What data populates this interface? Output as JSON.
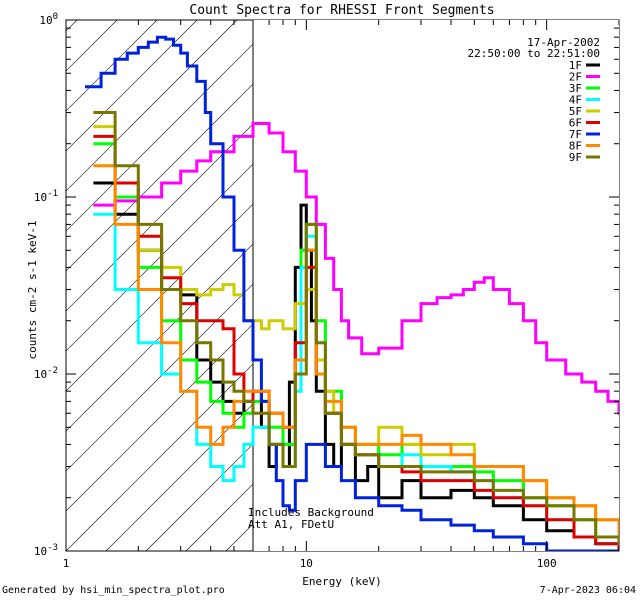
{
  "chart_data": {
    "type": "line",
    "title": "Count Spectra for RHESSI Front Segments",
    "xlabel": "Energy (keV)",
    "ylabel": "counts cm-2 s-1 keV-1",
    "xscale": "log",
    "yscale": "log",
    "xlim": [
      1,
      200
    ],
    "ylim": [
      0.001,
      1
    ],
    "x_tick_labels": [
      "1",
      "10",
      "100"
    ],
    "y_tick_labels": [
      "10^0",
      "10^-1",
      "10^-2",
      "10^-3"
    ],
    "date": "17-Apr-2002",
    "time_range": "22:50:00 to 22:51:00",
    "attenuator_cutoff_keV": 6,
    "annotations": [
      "Includes Background",
      "Att A1, FDetU"
    ],
    "series": [
      {
        "name": "1F",
        "color": "#000000",
        "x": [
          1.3,
          1.6,
          2,
          2.5,
          3,
          3.5,
          4,
          4.5,
          5,
          5.5,
          6,
          6.5,
          7,
          7.5,
          8,
          8.5,
          9,
          9.5,
          10,
          10.5,
          11,
          12,
          13,
          14,
          16,
          18,
          20,
          25,
          30,
          40,
          50,
          60,
          80,
          100,
          130,
          160,
          200
        ],
        "y": [
          0.12,
          0.08,
          0.05,
          0.03,
          0.028,
          0.012,
          0.009,
          0.007,
          0.006,
          0.007,
          0.008,
          0.005,
          0.003,
          0.004,
          0.003,
          0.009,
          0.04,
          0.09,
          0.05,
          0.02,
          0.008,
          0.004,
          0.003,
          0.004,
          0.0025,
          0.003,
          0.002,
          0.0025,
          0.002,
          0.0022,
          0.002,
          0.0018,
          0.0015,
          0.0013,
          0.0012,
          0.0011,
          0.001
        ]
      },
      {
        "name": "2F",
        "color": "#ff00ff",
        "x": [
          1.3,
          1.6,
          2,
          2.5,
          3,
          3.5,
          4,
          5,
          6,
          7,
          8,
          9,
          10,
          11,
          12,
          13,
          14,
          15,
          17,
          20,
          25,
          30,
          35,
          40,
          45,
          50,
          55,
          60,
          70,
          80,
          90,
          100,
          120,
          140,
          160,
          180,
          200
        ],
        "y": [
          0.09,
          0.095,
          0.1,
          0.12,
          0.14,
          0.16,
          0.18,
          0.22,
          0.26,
          0.23,
          0.18,
          0.14,
          0.1,
          0.07,
          0.045,
          0.03,
          0.02,
          0.016,
          0.013,
          0.014,
          0.02,
          0.025,
          0.027,
          0.028,
          0.03,
          0.033,
          0.035,
          0.03,
          0.025,
          0.02,
          0.015,
          0.012,
          0.01,
          0.009,
          0.008,
          0.007,
          0.006
        ]
      },
      {
        "name": "3F",
        "color": "#00ff00",
        "x": [
          1.3,
          1.6,
          2,
          2.5,
          3,
          3.5,
          4,
          4.5,
          5,
          5.5,
          6,
          7,
          8,
          9,
          9.5,
          10,
          11,
          12,
          14,
          16,
          20,
          25,
          30,
          40,
          50,
          60,
          80,
          100,
          130,
          160,
          200
        ],
        "y": [
          0.2,
          0.1,
          0.04,
          0.02,
          0.012,
          0.009,
          0.007,
          0.006,
          0.005,
          0.006,
          0.007,
          0.005,
          0.004,
          0.01,
          0.05,
          0.07,
          0.02,
          0.008,
          0.005,
          0.004,
          0.0035,
          0.004,
          0.003,
          0.003,
          0.0028,
          0.0025,
          0.002,
          0.0018,
          0.0015,
          0.0012,
          0.001
        ]
      },
      {
        "name": "4F",
        "color": "#00ffff",
        "x": [
          1.3,
          1.6,
          2,
          2.5,
          3,
          3.5,
          4,
          4.5,
          5,
          5.5,
          6,
          7,
          8,
          9,
          9.5,
          10,
          11,
          12,
          14,
          16,
          20,
          25,
          30,
          40,
          50,
          60,
          80,
          100,
          130,
          160,
          200
        ],
        "y": [
          0.08,
          0.03,
          0.015,
          0.01,
          0.008,
          0.004,
          0.003,
          0.0025,
          0.003,
          0.004,
          0.005,
          0.004,
          0.003,
          0.008,
          0.04,
          0.06,
          0.015,
          0.006,
          0.004,
          0.0035,
          0.003,
          0.0035,
          0.003,
          0.0028,
          0.0025,
          0.002,
          0.0018,
          0.0015,
          0.0012,
          0.0011,
          0.001
        ]
      },
      {
        "name": "5F",
        "color": "#cccc00",
        "x": [
          1.3,
          1.6,
          2,
          2.5,
          3,
          3.5,
          4,
          4.5,
          5,
          5.5,
          6,
          6.5,
          7,
          8,
          9,
          10,
          11,
          12,
          13,
          14,
          16,
          20,
          25,
          30,
          40,
          50,
          60,
          80,
          100,
          130,
          160,
          200
        ],
        "y": [
          0.25,
          0.12,
          0.05,
          0.04,
          0.03,
          0.028,
          0.03,
          0.032,
          0.028,
          0.02,
          0.02,
          0.018,
          0.02,
          0.018,
          0.025,
          0.03,
          0.012,
          0.008,
          0.006,
          0.005,
          0.004,
          0.005,
          0.004,
          0.0035,
          0.004,
          0.003,
          0.003,
          0.0025,
          0.002,
          0.0018,
          0.0015,
          0.0012
        ]
      },
      {
        "name": "6F",
        "color": "#dd0000",
        "x": [
          1.3,
          1.6,
          2,
          2.5,
          3,
          3.5,
          4,
          4.5,
          5,
          5.5,
          6,
          7,
          8,
          9,
          10,
          11,
          12,
          14,
          16,
          20,
          25,
          30,
          40,
          50,
          60,
          80,
          100,
          130,
          160,
          200
        ],
        "y": [
          0.22,
          0.12,
          0.06,
          0.035,
          0.025,
          0.02,
          0.02,
          0.018,
          0.01,
          0.007,
          0.008,
          0.006,
          0.005,
          0.015,
          0.04,
          0.01,
          0.006,
          0.004,
          0.0035,
          0.003,
          0.0028,
          0.0025,
          0.0025,
          0.0022,
          0.002,
          0.0018,
          0.0015,
          0.0012,
          0.0011,
          0.001
        ]
      },
      {
        "name": "7F",
        "color": "#0022dd",
        "x": [
          1.2,
          1.4,
          1.6,
          1.8,
          2,
          2.2,
          2.4,
          2.6,
          2.8,
          3,
          3.2,
          3.5,
          3.8,
          4,
          4.5,
          5,
          5.5,
          6,
          6.5,
          7,
          7.5,
          8,
          8.5,
          9,
          10,
          11,
          12,
          14,
          16,
          20,
          25,
          30,
          40,
          50,
          60,
          80,
          100,
          130,
          160,
          200
        ],
        "y": [
          0.42,
          0.5,
          0.6,
          0.65,
          0.7,
          0.75,
          0.8,
          0.78,
          0.72,
          0.65,
          0.55,
          0.45,
          0.3,
          0.2,
          0.1,
          0.05,
          0.02,
          0.012,
          0.007,
          0.004,
          0.0025,
          0.0018,
          0.0017,
          0.0025,
          0.004,
          0.004,
          0.003,
          0.0025,
          0.002,
          0.0018,
          0.0017,
          0.0015,
          0.0014,
          0.0013,
          0.0012,
          0.0011,
          0.001,
          0.001,
          0.001,
          0.001
        ]
      },
      {
        "name": "8F",
        "color": "#ff8800",
        "x": [
          1.3,
          1.6,
          2,
          2.5,
          3,
          3.5,
          4,
          4.5,
          5,
          5.5,
          6,
          7,
          8,
          9,
          10,
          11,
          12,
          14,
          16,
          20,
          25,
          30,
          40,
          50,
          60,
          80,
          100,
          130,
          160,
          200
        ],
        "y": [
          0.15,
          0.07,
          0.03,
          0.015,
          0.008,
          0.005,
          0.004,
          0.005,
          0.007,
          0.008,
          0.008,
          0.006,
          0.005,
          0.012,
          0.05,
          0.01,
          0.007,
          0.005,
          0.004,
          0.004,
          0.0045,
          0.004,
          0.0035,
          0.003,
          0.003,
          0.0025,
          0.002,
          0.0018,
          0.0015,
          0.0012
        ]
      },
      {
        "name": "9F",
        "color": "#777700",
        "x": [
          1.3,
          1.6,
          2,
          2.5,
          3,
          3.5,
          4,
          4.5,
          5,
          5.5,
          6,
          7,
          8,
          9,
          10,
          11,
          12,
          14,
          16,
          20,
          25,
          30,
          40,
          50,
          60,
          80,
          100,
          130,
          160,
          200
        ],
        "y": [
          0.3,
          0.15,
          0.07,
          0.03,
          0.02,
          0.015,
          0.012,
          0.009,
          0.008,
          0.007,
          0.006,
          0.004,
          0.003,
          0.01,
          0.07,
          0.015,
          0.006,
          0.004,
          0.0035,
          0.003,
          0.003,
          0.0028,
          0.0028,
          0.0025,
          0.0022,
          0.002,
          0.0018,
          0.0015,
          0.0012,
          0.0011
        ]
      }
    ]
  },
  "footer": {
    "generated_by": "Generated by hsi_min_spectra_plot.pro",
    "timestamp": "7-Apr-2023 06:04"
  }
}
